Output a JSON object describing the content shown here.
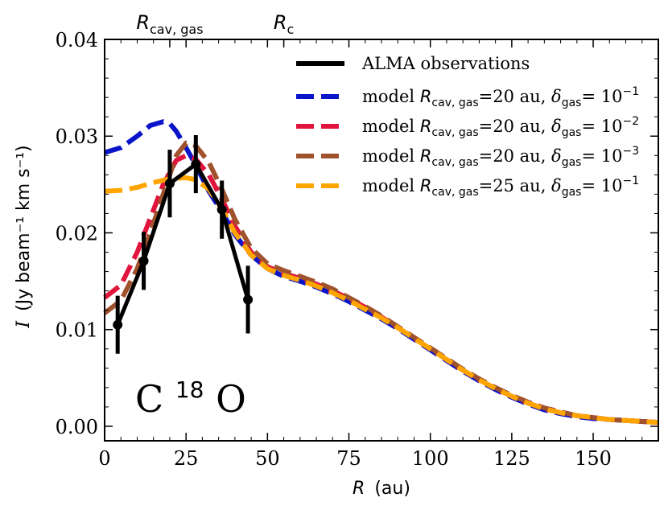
{
  "chart_data": {
    "type": "line",
    "xlabel": "R",
    "xlabel_unit": "(au)",
    "ylabel": "I",
    "ylabel_unit": "(Jy beam⁻¹ km s⁻¹)",
    "xlim": [
      0,
      170
    ],
    "ylim": [
      -0.0015,
      0.04
    ],
    "xticks": [
      0,
      25,
      50,
      75,
      100,
      125,
      150
    ],
    "yticks": [
      0.0,
      0.01,
      0.02,
      0.03,
      0.04
    ],
    "xtick_labels": [
      "0",
      "25",
      "50",
      "75",
      "100",
      "125",
      "150"
    ],
    "ytick_labels": [
      "0.00",
      "0.01",
      "0.02",
      "0.03",
      "0.04"
    ],
    "top_markers": [
      {
        "label": "R",
        "subscript": "cav, gas",
        "x": 20
      },
      {
        "label": "R",
        "subscript": "c",
        "x": 55
      }
    ],
    "annotation": {
      "text": "C",
      "superscript": "18",
      "text_after": "O"
    },
    "legend_position": "top-right",
    "observations": {
      "name": "ALMA observations",
      "color": "#000000",
      "x": [
        4,
        12,
        20,
        28,
        36,
        44
      ],
      "y": [
        0.0105,
        0.0171,
        0.0251,
        0.0271,
        0.0224,
        0.0131
      ],
      "yerr": [
        0.003,
        0.003,
        0.0035,
        0.003,
        0.003,
        0.0035
      ]
    },
    "series": [
      {
        "name": "model",
        "rcav": "20",
        "delta": "10",
        "delta_exp": "−1",
        "color": "#0a14c8",
        "x": [
          0,
          5,
          10,
          14,
          18,
          20,
          22,
          25,
          28,
          32,
          36,
          40,
          45,
          50,
          55,
          60,
          65,
          70,
          75,
          80,
          85,
          90,
          95,
          100,
          105,
          110,
          115,
          120,
          125,
          130,
          135,
          140,
          145,
          150,
          155,
          160,
          165,
          170
        ],
        "y": [
          0.0283,
          0.0288,
          0.03,
          0.0311,
          0.0315,
          0.0313,
          0.0305,
          0.0288,
          0.027,
          0.0243,
          0.0222,
          0.0198,
          0.0177,
          0.0163,
          0.0155,
          0.015,
          0.0144,
          0.0137,
          0.0129,
          0.012,
          0.0111,
          0.0101,
          0.009,
          0.0079,
          0.0068,
          0.0057,
          0.0047,
          0.0038,
          0.003,
          0.0023,
          0.0017,
          0.0013,
          0.001,
          0.0008,
          0.0007,
          0.0006,
          0.0005,
          0.0004
        ]
      },
      {
        "name": "model",
        "rcav": "20",
        "delta": "10",
        "delta_exp": "−2",
        "color": "#e0143c",
        "x": [
          0,
          5,
          10,
          14,
          18,
          22,
          25,
          28,
          32,
          36,
          40,
          45,
          50,
          55,
          60,
          65,
          70,
          75,
          80,
          85,
          90,
          95,
          100,
          105,
          110,
          115,
          120,
          125,
          130,
          135,
          140,
          145,
          150,
          155,
          160,
          165,
          170
        ],
        "y": [
          0.0133,
          0.0146,
          0.018,
          0.0215,
          0.025,
          0.0275,
          0.028,
          0.0276,
          0.026,
          0.0235,
          0.0207,
          0.018,
          0.0165,
          0.0158,
          0.0153,
          0.0147,
          0.014,
          0.0132,
          0.0123,
          0.0113,
          0.0102,
          0.0091,
          0.008,
          0.0069,
          0.0058,
          0.0048,
          0.0039,
          0.0031,
          0.0024,
          0.0018,
          0.0014,
          0.0011,
          0.0009,
          0.0007,
          0.0006,
          0.0005,
          0.0004
        ]
      },
      {
        "name": "model",
        "rcav": "20",
        "delta": "10",
        "delta_exp": "−3",
        "color": "#a0522d",
        "x": [
          0,
          5,
          10,
          14,
          18,
          22,
          25,
          28,
          32,
          36,
          40,
          45,
          50,
          55,
          60,
          65,
          70,
          75,
          80,
          85,
          90,
          95,
          100,
          105,
          110,
          115,
          120,
          125,
          130,
          135,
          140,
          145,
          150,
          155,
          160,
          165,
          170
        ],
        "y": [
          0.0117,
          0.013,
          0.0163,
          0.02,
          0.024,
          0.028,
          0.0293,
          0.029,
          0.0273,
          0.0245,
          0.0214,
          0.0184,
          0.0168,
          0.0161,
          0.0155,
          0.0149,
          0.0142,
          0.0133,
          0.0124,
          0.0114,
          0.0103,
          0.0092,
          0.0081,
          0.007,
          0.0059,
          0.0049,
          0.004,
          0.0032,
          0.0025,
          0.0019,
          0.0015,
          0.0011,
          0.0009,
          0.0007,
          0.0006,
          0.0005,
          0.0004
        ]
      },
      {
        "name": "model",
        "rcav": "25",
        "delta": "10",
        "delta_exp": "−1",
        "color": "#ffa500",
        "x": [
          0,
          5,
          10,
          15,
          20,
          25,
          28,
          32,
          36,
          40,
          45,
          50,
          55,
          60,
          65,
          70,
          75,
          80,
          85,
          90,
          95,
          100,
          105,
          110,
          115,
          120,
          125,
          130,
          135,
          140,
          145,
          150,
          155,
          160,
          165,
          170
        ],
        "y": [
          0.0243,
          0.0244,
          0.0247,
          0.0252,
          0.0256,
          0.0257,
          0.0255,
          0.0245,
          0.0225,
          0.02,
          0.0177,
          0.0163,
          0.0156,
          0.0151,
          0.0145,
          0.0138,
          0.013,
          0.0121,
          0.0112,
          0.0102,
          0.0091,
          0.008,
          0.0069,
          0.0058,
          0.0048,
          0.0039,
          0.0031,
          0.0024,
          0.0018,
          0.0014,
          0.0011,
          0.0009,
          0.0007,
          0.0006,
          0.0005,
          0.0004
        ]
      }
    ]
  }
}
